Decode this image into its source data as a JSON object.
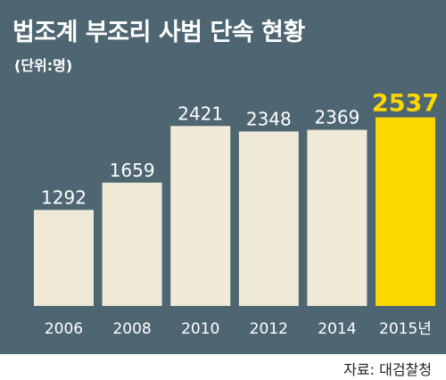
{
  "chart": {
    "title": "법조계 부조리 사범 단속 현황",
    "subtitle": "(단위:명)",
    "source": "자료: 대검찰청"
  },
  "colors": {
    "panel_background": "#4e6672",
    "bar_default": "#efe9d7",
    "bar_highlight": "#fcd700",
    "text_light": "#ffffff",
    "text_dark": "#222222"
  },
  "chart_data": {
    "type": "bar",
    "title": "법조계 부조리 사범 단속 현황",
    "unit": "(단위:명)",
    "categories": [
      "2006",
      "2008",
      "2010",
      "2012",
      "2014",
      "2015년"
    ],
    "values": [
      1292,
      1659,
      2421,
      2348,
      2369,
      2537
    ],
    "value_labels": [
      "1292",
      "1659",
      "2421",
      "2348",
      "2369",
      "2537"
    ],
    "highlight_index": 5,
    "ylim": [
      0,
      2700
    ],
    "grid": false,
    "legend": "none"
  }
}
